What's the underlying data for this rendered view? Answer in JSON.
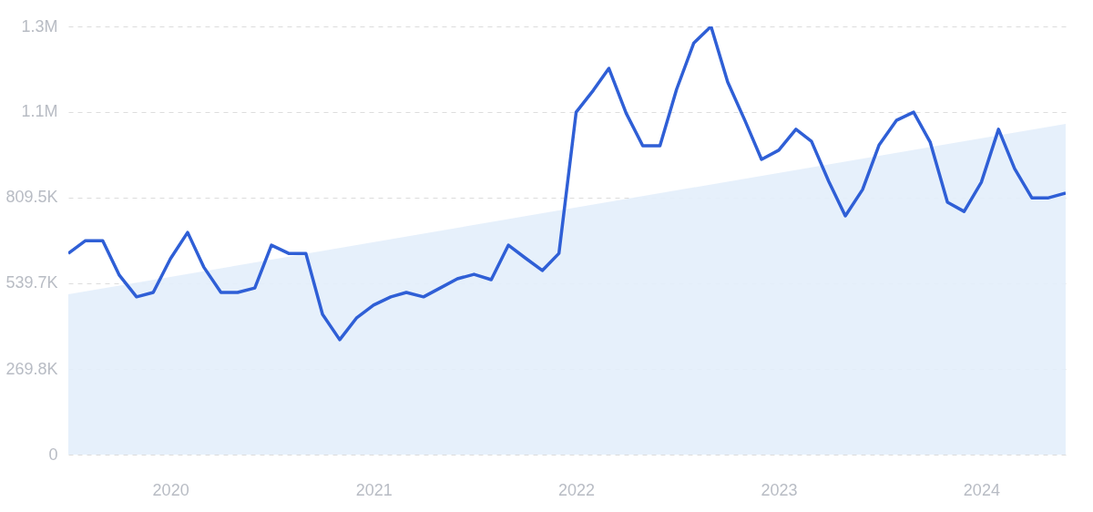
{
  "chart_data": {
    "type": "line",
    "x": [
      "2019-07",
      "2019-08",
      "2019-09",
      "2019-10",
      "2019-11",
      "2019-12",
      "2020-01",
      "2020-02",
      "2020-03",
      "2020-04",
      "2020-05",
      "2020-06",
      "2020-07",
      "2020-08",
      "2020-09",
      "2020-10",
      "2020-11",
      "2020-12",
      "2021-01",
      "2021-02",
      "2021-03",
      "2021-04",
      "2021-05",
      "2021-06",
      "2021-07",
      "2021-08",
      "2021-09",
      "2021-10",
      "2021-11",
      "2021-12",
      "2022-01",
      "2022-02",
      "2022-03",
      "2022-04",
      "2022-05",
      "2022-06",
      "2022-07",
      "2022-08",
      "2022-09",
      "2022-10",
      "2022-11",
      "2022-12",
      "2023-01",
      "2023-02",
      "2023-03",
      "2023-04",
      "2023-05",
      "2023-06",
      "2023-07",
      "2023-08",
      "2023-09",
      "2023-10",
      "2023-11",
      "2023-12",
      "2024-01",
      "2024-02",
      "2024-03",
      "2024-04",
      "2024-05",
      "2024-06"
    ],
    "series": [
      {
        "type": "area",
        "color": "#e3eefb",
        "x": [
          "2019-07",
          "2024-06"
        ],
        "values": [
          505000,
          1042000
        ]
      },
      {
        "color": "#2f5fd6",
        "values": [
          634000,
          674000,
          674000,
          565000,
          497000,
          511000,
          617000,
          700000,
          591000,
          511000,
          511000,
          525000,
          660000,
          634000,
          634000,
          442000,
          362000,
          430000,
          471000,
          497000,
          511000,
          497000,
          525000,
          554000,
          568000,
          551000,
          660000,
          620000,
          580000,
          634000,
          1079000,
          1148000,
          1217000,
          1076000,
          973000,
          973000,
          1151000,
          1297000,
          1349000,
          1174000,
          1053000,
          930000,
          959000,
          1025000,
          987000,
          861000,
          752000,
          835000,
          976000,
          1053000,
          1079000,
          984000,
          795000,
          766000,
          858000,
          1025000,
          901000,
          809000,
          809000,
          824000
        ]
      }
    ],
    "xlim": [
      "2019-07",
      "2024-06"
    ],
    "xticks": [
      "2020",
      "2021",
      "2022",
      "2023",
      "2024"
    ],
    "ylim": [
      0,
      1349100
    ],
    "yticks": [
      0,
      {
        "value": 269800,
        "label": "269.8K"
      },
      {
        "value": 539700,
        "label": "539.7K"
      },
      {
        "value": 809500,
        "label": "809.5K"
      },
      {
        "value": 1079300,
        "label": "1.1M"
      },
      {
        "value": 1349100,
        "label": "1.3M"
      }
    ],
    "grid": "y",
    "legend": false,
    "marker": "none",
    "line_style": "solid"
  }
}
